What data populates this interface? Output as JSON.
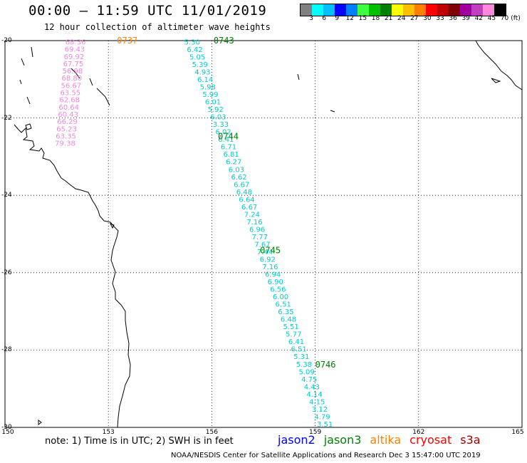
{
  "header": {
    "title": "00:00 – 11:59 UTC 11/01/2019",
    "subtitle": "12 hour collection of altimeter wave heights"
  },
  "color_legend": {
    "colors": [
      "#808080",
      "#00ffff",
      "#00bfff",
      "#0000ff",
      "#0080ff",
      "#40ff40",
      "#00c000",
      "#008000",
      "#ffff00",
      "#ffc000",
      "#ff8000",
      "#ff0000",
      "#c00000",
      "#800000",
      "#a000a0",
      "#c040c0",
      "#ff88dd",
      "#000000"
    ],
    "labels": [
      "3",
      "6",
      "9",
      "12",
      "15",
      "18",
      "21",
      "24",
      "27",
      "30",
      "33",
      "36",
      "39",
      "42",
      "45",
      "70"
    ],
    "unit": "(ft)"
  },
  "axes": {
    "lon_labels": [
      "150",
      "153",
      "156",
      "159",
      "162",
      "165"
    ],
    "lat_labels": [
      "-20",
      "-22",
      "-24",
      "-26",
      "-28",
      "-30"
    ],
    "lon_range": [
      150,
      165
    ],
    "lat_range": [
      -30,
      -20
    ]
  },
  "tracks": {
    "pink_track": {
      "color": "#ee88dd",
      "values": [
        "68.36",
        "69.43",
        "69.92",
        "67.75",
        "56.98",
        "68.80",
        "56.67",
        "63.55",
        "62.68",
        "60.64",
        "60.43",
        "66.29",
        "65.23",
        "63.35",
        "79.38"
      ]
    },
    "cyan_track": {
      "color": "#00cccc",
      "values": [
        "5.30",
        "6.42",
        "5.05",
        "5.39",
        "4.93",
        "6.14",
        "5.98",
        "5.99",
        "6.01",
        "5.92",
        "6.03",
        "3.33",
        "6.02",
        "6.41",
        "6.71",
        "6.81",
        "6.27",
        "6.03",
        "6.62",
        "6.67",
        "6.48",
        "6.64",
        "6.67",
        "7.24",
        "7.16",
        "6.96",
        "7.77",
        "7.67",
        "7.44",
        "6.92",
        "7.16",
        "6.94",
        "6.90",
        "6.56",
        "6.00",
        "6.51",
        "6.35",
        "6.48",
        "5.51",
        "5.77",
        "6.41",
        "6.51",
        "5.31",
        "5.38",
        "5.09",
        "4.75",
        "4.43",
        "4.14",
        "4.15",
        "3.12",
        "4.79",
        "3.51"
      ]
    },
    "time_labels": [
      {
        "text": "0737",
        "color": "#ff8000",
        "lon": 153.25,
        "lat": -20.07
      },
      {
        "text": "0743",
        "color": "#008000",
        "lon": 156.05,
        "lat": -20.07
      },
      {
        "text": "0744",
        "color": "#008000",
        "lon": 156.18,
        "lat": -22.55
      },
      {
        "text": "0745",
        "color": "#008000",
        "lon": 157.4,
        "lat": -25.5
      },
      {
        "text": "0746",
        "color": "#008000",
        "lon": 159.0,
        "lat": -28.45
      }
    ]
  },
  "footer": {
    "note": "note: 1) Time is in UTC; 2) SWH is in feet",
    "satellites": [
      {
        "name": "jason2",
        "color": "#0000ff"
      },
      {
        "name": "jason3",
        "color": "#008000"
      },
      {
        "name": "altika",
        "color": "#ff8000"
      },
      {
        "name": "cryosat",
        "color": "#ff0000"
      },
      {
        "name": "s3a",
        "color": "#a00000"
      }
    ],
    "credit": "NOAA/NESDIS Center for Satellite Applications and Research   Dec  3 15:47:00 UTC 2019"
  }
}
